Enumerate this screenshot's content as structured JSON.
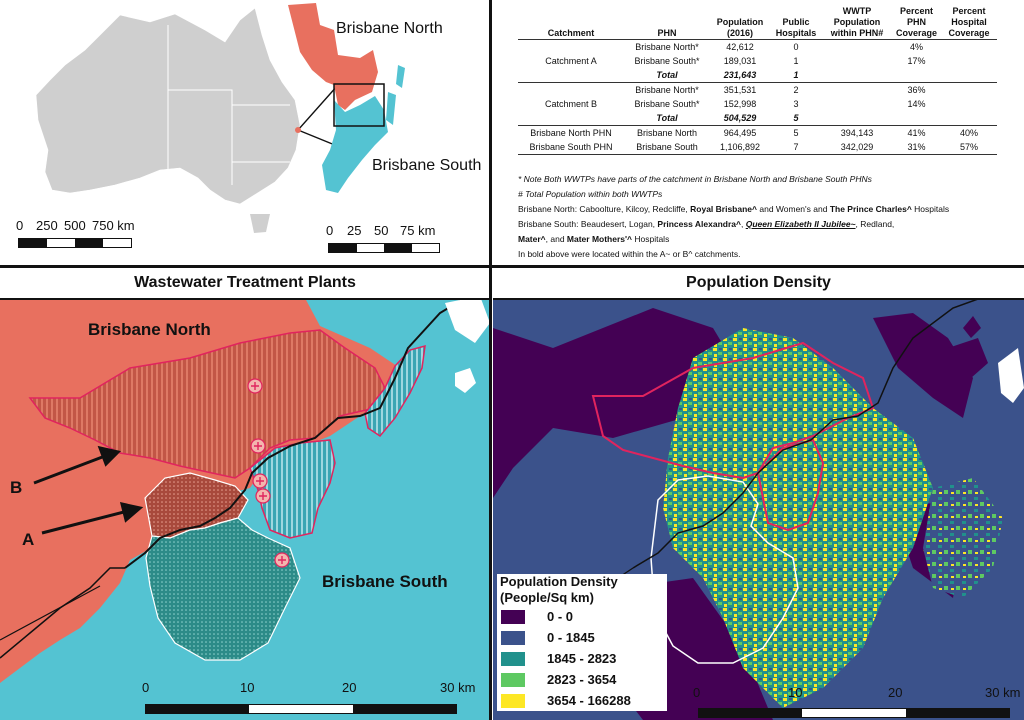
{
  "top_left_map": {
    "label_north": "Brisbane North",
    "label_south": "Brisbane South",
    "scale_left": [
      "0",
      "250",
      "500",
      "750 km"
    ],
    "scale_right": [
      "0",
      "25",
      "50",
      "75 km"
    ]
  },
  "table": {
    "headers": [
      "Catchment",
      "PHN",
      "Population (2016)",
      "Public Hospitals",
      "WWTP Population within PHN#",
      "Percent PHN Coverage",
      "Percent Hospital Coverage"
    ],
    "groups": [
      {
        "catchment": "Catchment A",
        "rows": [
          {
            "phn": "Brisbane North*",
            "population": "42,612",
            "hospitals": "0",
            "wwtp": "",
            "phn_cov": "4%",
            "hosp_cov": ""
          },
          {
            "phn": "Brisbane South*",
            "population": "189,031",
            "hospitals": "1",
            "wwtp": "",
            "phn_cov": "17%",
            "hosp_cov": ""
          },
          {
            "phn": "Total",
            "population": "231,643",
            "hospitals": "1",
            "wwtp": "",
            "phn_cov": "",
            "hosp_cov": ""
          }
        ]
      },
      {
        "catchment": "Catchment B",
        "rows": [
          {
            "phn": "Brisbane North*",
            "population": "351,531",
            "hospitals": "2",
            "wwtp": "",
            "phn_cov": "36%",
            "hosp_cov": ""
          },
          {
            "phn": "Brisbane South*",
            "population": "152,998",
            "hospitals": "3",
            "wwtp": "",
            "phn_cov": "14%",
            "hosp_cov": ""
          },
          {
            "phn": "Total",
            "population": "504,529",
            "hospitals": "5",
            "wwtp": "",
            "phn_cov": "",
            "hosp_cov": ""
          }
        ]
      }
    ],
    "phn_rows": [
      {
        "catchment": "Brisbane North PHN",
        "phn": "Brisbane North",
        "population": "964,495",
        "hospitals": "5",
        "wwtp": "394,143",
        "phn_cov": "41%",
        "hosp_cov": "40%"
      },
      {
        "catchment": "Brisbane South PHN",
        "phn": "Brisbane South",
        "population": "1,106,892",
        "hospitals": "7",
        "wwtp": "342,029",
        "phn_cov": "31%",
        "hosp_cov": "57%"
      }
    ],
    "notes": {
      "note1": "* Note Both WWTPs have parts of the catchment in Brisbane North and Brisbane South PHNs",
      "note2": "# Total Population within both WWTPs",
      "north_prefix": "Brisbane North: Caboolture, Kilcoy, Redcliffe, ",
      "north_bold1": "Royal Brisbane^",
      "north_mid": " and Women's and ",
      "north_bold2": "The Prince Charles^",
      "north_suffix": " Hospitals",
      "south_prefix": "Brisbane South: Beaudesert, Logan, ",
      "south_bold1": "Princess Alexandra^",
      "south_mid": ", ",
      "south_bold2": "Queen Elizabeth II Jubilee~",
      "south_suffix": ", Redland,",
      "south2_bold1": "Mater^",
      "south2_mid": ", and ",
      "south2_bold2": "Mater Mothers'^",
      "south2_suffix": " Hospitals",
      "note_last": "In bold above were located within the A~ or B^ catchments."
    }
  },
  "wwtp_panel": {
    "title": "Wastewater Treatment Plants",
    "label_north": "Brisbane North",
    "label_south": "Brisbane South",
    "label_a": "A",
    "label_b": "B",
    "scale": [
      "0",
      "10",
      "20",
      "30 km"
    ]
  },
  "density_panel": {
    "title": "Population Density",
    "scale": [
      "0",
      "10",
      "20",
      "30 km"
    ],
    "legend_title_1": "Population Density",
    "legend_title_2": "(People/Sq km)",
    "legend": [
      {
        "label": "0 - 0",
        "color": "#440154"
      },
      {
        "label": "0 - 1845",
        "color": "#3b528b"
      },
      {
        "label": "1845 - 2823",
        "color": "#21918c"
      },
      {
        "label": "2823 - 3654",
        "color": "#5ec962"
      },
      {
        "label": "3654 - 166288",
        "color": "#fde725"
      }
    ]
  },
  "colors": {
    "north": "#e8705f",
    "south": "#54c3d2",
    "catch_b": "#c05a4a",
    "catch_a_north": "#a8493c",
    "catch_a_south": "#2f8f8c",
    "boundary": "#e0245e"
  }
}
